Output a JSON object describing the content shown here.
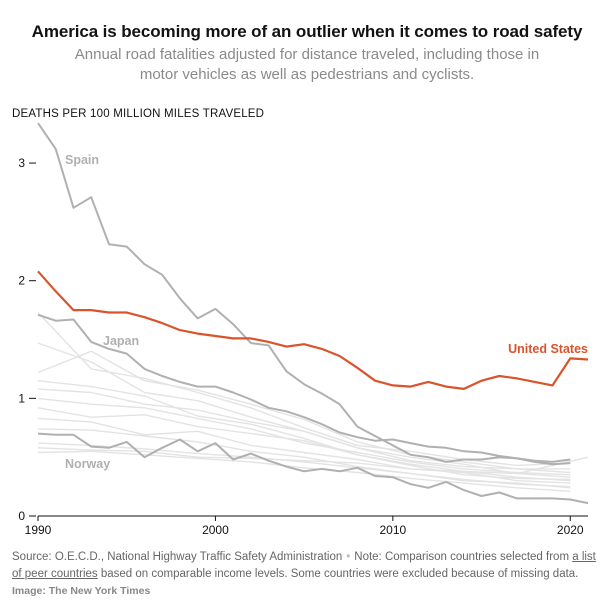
{
  "header": {
    "title": "America is becoming more of an outlier when it comes to road safety",
    "subtitle": "Annual road fatalities adjusted for distance traveled, including those in motor vehicles as well as pedestrians and cyclists."
  },
  "footer": {
    "source": "Source: O.E.C.D., National Highway Traffic Safety Administration",
    "dot": "•",
    "note_before_link": "Note: Comparison countries selected from ",
    "link_text": "a list of peer countries",
    "note_after_link": " based on comparable income levels. Some countries were excluded because of missing data.",
    "credit": "Image: The New York Times"
  },
  "colors": {
    "us": "#d9542c",
    "highlight": "#b0b0b0",
    "background_lines": "#e3e3e3",
    "axis": "#121212"
  },
  "chart_data": {
    "type": "line",
    "title": "America is becoming more of an outlier when it comes to road safety",
    "subtitle": "Annual road fatalities adjusted for distance traveled, including those in motor vehicles as well as pedestrians and cyclists.",
    "ylabel": "DEATHS PER 100 MILLION MILES TRAVELED",
    "xlabel": "",
    "xlim": [
      1990,
      2021
    ],
    "ylim": [
      0,
      3.4
    ],
    "x_ticks": [
      1990,
      2000,
      2010,
      2020
    ],
    "y_ticks": [
      0,
      1,
      2,
      3
    ],
    "grid": false,
    "highlighted_series": [
      {
        "name": "United States",
        "label": "United States",
        "color": "#d9542c",
        "x": [
          1990,
          1991,
          1992,
          1993,
          1994,
          1995,
          1996,
          1997,
          1998,
          1999,
          2000,
          2001,
          2002,
          2003,
          2004,
          2005,
          2006,
          2007,
          2008,
          2009,
          2010,
          2011,
          2012,
          2013,
          2014,
          2015,
          2016,
          2017,
          2018,
          2019,
          2020,
          2021
        ],
        "values": [
          2.08,
          1.91,
          1.75,
          1.75,
          1.73,
          1.73,
          1.69,
          1.64,
          1.58,
          1.55,
          1.53,
          1.51,
          1.51,
          1.48,
          1.44,
          1.46,
          1.42,
          1.36,
          1.26,
          1.15,
          1.11,
          1.1,
          1.14,
          1.1,
          1.08,
          1.15,
          1.19,
          1.17,
          1.14,
          1.11,
          1.34,
          1.33
        ]
      },
      {
        "name": "Spain",
        "label": "Spain",
        "color": "#b0b0b0",
        "x": [
          1990,
          1991,
          1992,
          1993,
          1994,
          1995,
          1996,
          1997,
          1998,
          1999,
          2000,
          2001,
          2002,
          2003,
          2004,
          2005,
          2006,
          2007,
          2008,
          2009,
          2010,
          2011,
          2012,
          2013,
          2014,
          2015,
          2016,
          2017,
          2018,
          2019,
          2020
        ],
        "values": [
          3.34,
          3.12,
          2.62,
          2.71,
          2.31,
          2.29,
          2.14,
          2.05,
          1.85,
          1.68,
          1.76,
          1.63,
          1.47,
          1.45,
          1.23,
          1.12,
          1.04,
          0.95,
          0.76,
          0.68,
          0.6,
          0.52,
          0.5,
          0.46,
          0.48,
          0.48,
          0.5,
          0.49,
          0.47,
          0.46,
          0.48
        ]
      },
      {
        "name": "Japan",
        "label": "Japan",
        "color": "#b0b0b0",
        "x": [
          1990,
          1991,
          1992,
          1993,
          1994,
          1995,
          1996,
          1997,
          1998,
          1999,
          2000,
          2001,
          2002,
          2003,
          2004,
          2005,
          2006,
          2007,
          2008,
          2009,
          2010,
          2011,
          2012,
          2013,
          2014,
          2015,
          2016,
          2017,
          2018,
          2019,
          2020
        ],
        "values": [
          1.71,
          1.66,
          1.67,
          1.48,
          1.42,
          1.38,
          1.25,
          1.19,
          1.14,
          1.1,
          1.1,
          1.05,
          0.99,
          0.92,
          0.89,
          0.84,
          0.78,
          0.71,
          0.67,
          0.64,
          0.65,
          0.62,
          0.59,
          0.58,
          0.55,
          0.54,
          0.51,
          0.49,
          0.46,
          0.44,
          0.45
        ]
      },
      {
        "name": "Norway",
        "label": "Norway",
        "color": "#b0b0b0",
        "x": [
          1990,
          1991,
          1992,
          1993,
          1994,
          1995,
          1996,
          1997,
          1998,
          1999,
          2000,
          2001,
          2002,
          2003,
          2004,
          2005,
          2006,
          2007,
          2008,
          2009,
          2010,
          2011,
          2012,
          2013,
          2014,
          2015,
          2016,
          2017,
          2018,
          2019,
          2020,
          2021
        ],
        "values": [
          0.7,
          0.69,
          0.69,
          0.59,
          0.58,
          0.63,
          0.5,
          0.58,
          0.65,
          0.55,
          0.62,
          0.48,
          0.53,
          0.47,
          0.42,
          0.38,
          0.4,
          0.38,
          0.41,
          0.34,
          0.33,
          0.27,
          0.24,
          0.29,
          0.22,
          0.17,
          0.2,
          0.15,
          0.15,
          0.15,
          0.14,
          0.11
        ]
      }
    ],
    "background_series": [
      {
        "x": [
          1990,
          1993,
          1996,
          1999,
          2002,
          2005,
          2008,
          2011,
          2014,
          2017,
          2020
        ],
        "values": [
          1.47,
          1.31,
          1.05,
          0.98,
          0.84,
          0.72,
          0.58,
          0.47,
          0.42,
          0.4,
          0.37
        ]
      },
      {
        "x": [
          1990,
          1993,
          1996,
          1999,
          2002,
          2005,
          2008,
          2011,
          2014,
          2017,
          2020
        ],
        "values": [
          1.22,
          1.4,
          1.15,
          1.07,
          0.95,
          0.82,
          0.63,
          0.52,
          0.46,
          0.4,
          0.4
        ]
      },
      {
        "x": [
          1990,
          1993,
          1996,
          1999,
          2002,
          2005,
          2008,
          2011,
          2014,
          2017,
          2020
        ],
        "values": [
          1.73,
          1.25,
          1.17,
          1.05,
          0.92,
          0.75,
          0.6,
          0.55,
          0.48,
          0.43,
          0.45
        ]
      },
      {
        "x": [
          1990,
          1993,
          1996,
          1999,
          2002,
          2005,
          2008,
          2011,
          2014,
          2017,
          2020
        ],
        "values": [
          1.08,
          1.05,
          0.95,
          0.9,
          0.8,
          0.72,
          0.58,
          0.5,
          0.44,
          0.36,
          0.33
        ]
      },
      {
        "x": [
          1990,
          1993,
          1996,
          1999,
          2002,
          2005,
          2008,
          2011,
          2014,
          2017,
          2020
        ],
        "values": [
          1.0,
          0.95,
          0.92,
          0.83,
          0.74,
          0.62,
          0.54,
          0.46,
          0.4,
          0.37,
          0.35
        ]
      },
      {
        "x": [
          1990,
          1993,
          1996,
          1999,
          2002,
          2005,
          2008,
          2011,
          2014,
          2017,
          2020
        ],
        "values": [
          0.92,
          0.84,
          0.86,
          0.76,
          0.7,
          0.64,
          0.52,
          0.44,
          0.38,
          0.33,
          0.3
        ]
      },
      {
        "x": [
          1990,
          1993,
          1996,
          1999,
          2002,
          2005,
          2008,
          2011,
          2014,
          2017,
          2020
        ],
        "values": [
          0.83,
          0.8,
          0.69,
          0.72,
          0.6,
          0.54,
          0.48,
          0.4,
          0.37,
          0.3,
          0.28
        ]
      },
      {
        "x": [
          1990,
          1993,
          1996,
          1999,
          2002,
          2005,
          2008,
          2011,
          2014,
          2017,
          2020
        ],
        "values": [
          0.74,
          0.73,
          0.68,
          0.63,
          0.55,
          0.5,
          0.42,
          0.36,
          0.3,
          0.28,
          0.24
        ]
      },
      {
        "x": [
          1990,
          1993,
          1996,
          1999,
          2002,
          2005,
          2008,
          2011,
          2014,
          2017,
          2020
        ],
        "values": [
          1.15,
          1.1,
          1.02,
          0.85,
          0.78,
          0.66,
          0.52,
          0.43,
          0.35,
          0.32,
          0.31
        ]
      },
      {
        "x": [
          1990,
          1993,
          1996,
          1999,
          2002,
          2005,
          2008,
          2011,
          2014,
          2017,
          2020
        ],
        "values": [
          0.62,
          0.6,
          0.57,
          0.53,
          0.5,
          0.46,
          0.41,
          0.36,
          0.31,
          0.27,
          0.25
        ]
      },
      {
        "x": [
          1990,
          1993,
          1996,
          1999,
          2002,
          2005,
          2008,
          2011,
          2014,
          2017,
          2020
        ],
        "values": [
          0.54,
          0.55,
          0.52,
          0.49,
          0.46,
          0.41,
          0.37,
          0.32,
          0.28,
          0.24,
          0.21
        ]
      },
      {
        "x": [
          1990,
          1993,
          1996,
          1999,
          2002,
          2005,
          2008,
          2011,
          2014,
          2017,
          2021
        ],
        "values": [
          0.58,
          0.56,
          0.55,
          0.5,
          0.49,
          0.47,
          0.45,
          0.4,
          0.38,
          0.36,
          0.5
        ]
      }
    ]
  }
}
